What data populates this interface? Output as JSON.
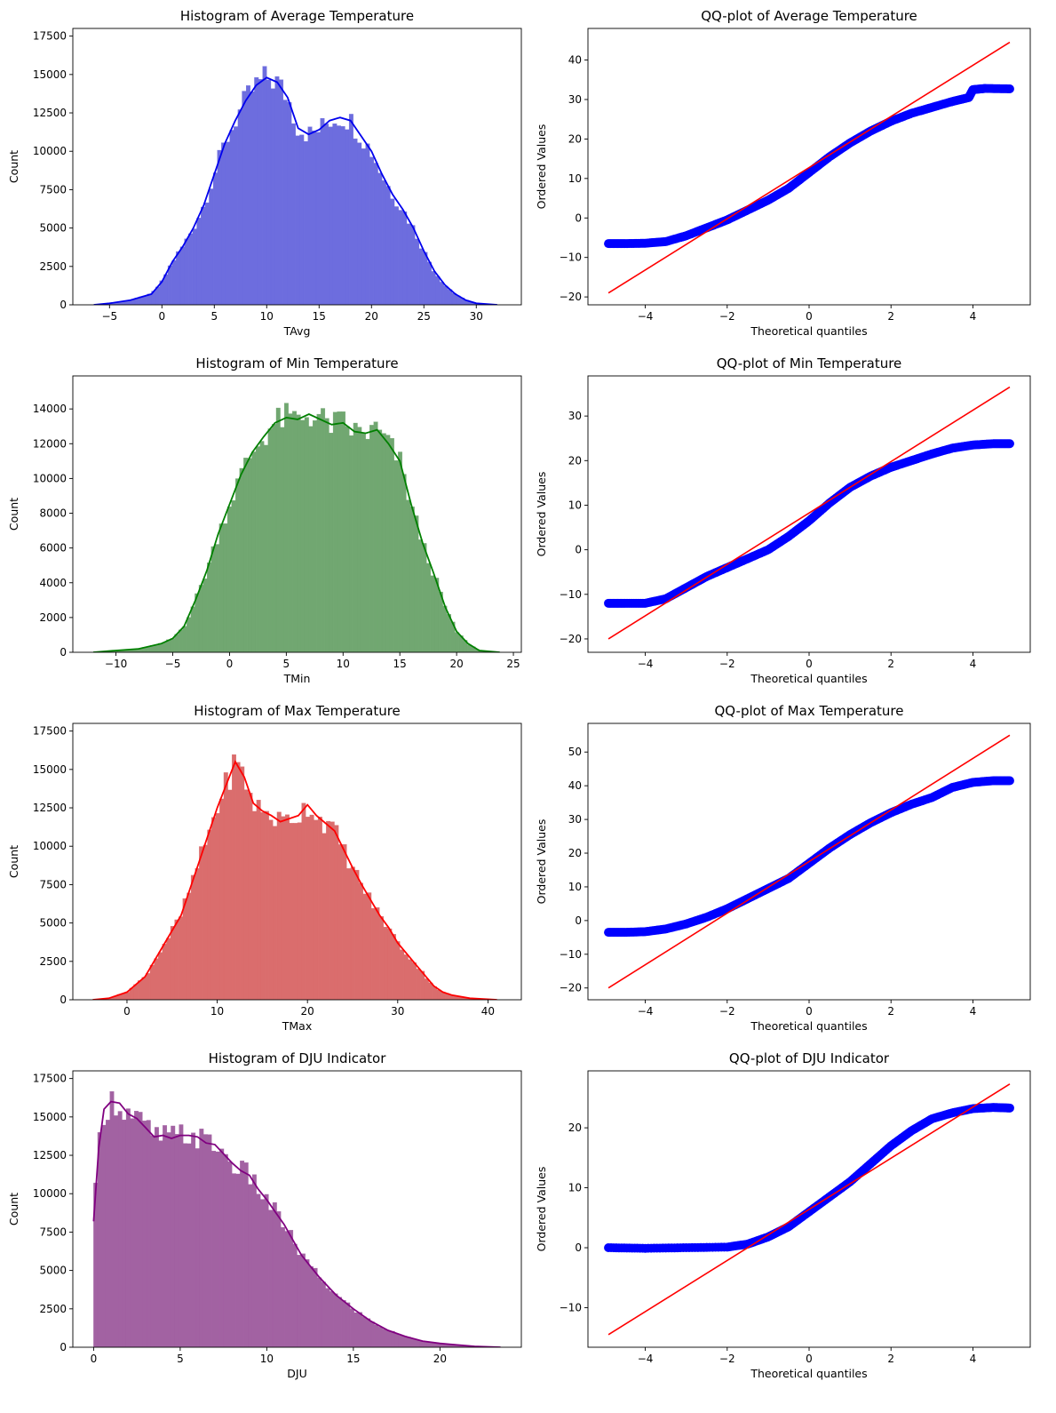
{
  "chart_data": [
    {
      "type": "histogram",
      "title": "Histogram of Average Temperature",
      "xlabel": "TAvg",
      "ylabel": "Count",
      "xlim": [
        -8.5,
        34.3
      ],
      "ylim": [
        0,
        18000
      ],
      "xticks": [
        -5,
        0,
        5,
        10,
        15,
        20,
        25,
        30
      ],
      "yticks": [
        0,
        2500,
        5000,
        7500,
        10000,
        12500,
        15000,
        17500
      ],
      "bins": [
        -6.5,
        32.8
      ],
      "bar_color": "#6666dd",
      "kde_color": "#0000ee",
      "kde": [
        [
          -6.5,
          0
        ],
        [
          -5,
          100
        ],
        [
          -3,
          300
        ],
        [
          -1,
          700
        ],
        [
          0,
          1500
        ],
        [
          1,
          2800
        ],
        [
          2,
          3800
        ],
        [
          3,
          5000
        ],
        [
          4,
          6500
        ],
        [
          5,
          8500
        ],
        [
          6,
          10500
        ],
        [
          7,
          12000
        ],
        [
          8,
          13300
        ],
        [
          9,
          14300
        ],
        [
          10,
          14800
        ],
        [
          11,
          14500
        ],
        [
          12,
          13500
        ],
        [
          13,
          11500
        ],
        [
          14,
          11100
        ],
        [
          15,
          11400
        ],
        [
          16,
          12000
        ],
        [
          17,
          12200
        ],
        [
          18,
          12000
        ],
        [
          19,
          11000
        ],
        [
          20,
          10000
        ],
        [
          21,
          8500
        ],
        [
          22,
          7200
        ],
        [
          23,
          6200
        ],
        [
          24,
          5000
        ],
        [
          25,
          3500
        ],
        [
          26,
          2200
        ],
        [
          27,
          1300
        ],
        [
          28,
          700
        ],
        [
          29,
          300
        ],
        [
          30,
          100
        ],
        [
          32,
          0
        ]
      ]
    },
    {
      "type": "scatter",
      "title": "QQ-plot of Average Temperature",
      "xlabel": "Theoretical quantiles",
      "ylabel": "Ordered Values",
      "xlim": [
        -5.4,
        5.4
      ],
      "ylim": [
        -22,
        48
      ],
      "xticks": [
        -4,
        -2,
        0,
        2,
        4
      ],
      "yticks": [
        -20,
        -10,
        0,
        10,
        20,
        30,
        40
      ],
      "points": [
        [
          -4.9,
          -6.5
        ],
        [
          -4.5,
          -6.5
        ],
        [
          -4,
          -6.4
        ],
        [
          -3.5,
          -6
        ],
        [
          -3,
          -4.5
        ],
        [
          -2.5,
          -2.5
        ],
        [
          -2,
          -0.5
        ],
        [
          -1.5,
          2
        ],
        [
          -1,
          4.5
        ],
        [
          -0.5,
          7.5
        ],
        [
          0,
          11.5
        ],
        [
          0.5,
          15.5
        ],
        [
          1,
          19
        ],
        [
          1.5,
          22
        ],
        [
          2,
          24.5
        ],
        [
          2.5,
          26.5
        ],
        [
          3,
          28
        ],
        [
          3.5,
          29.5
        ],
        [
          3.9,
          30.5
        ],
        [
          4,
          32.5
        ],
        [
          4.3,
          32.8
        ],
        [
          4.9,
          32.7
        ]
      ],
      "point_color": "#0000ff",
      "line": [
        [
          -4.9,
          -19
        ],
        [
          4.9,
          44.5
        ]
      ],
      "line_color": "#ff0000"
    },
    {
      "type": "histogram",
      "title": "Histogram of Min Temperature",
      "xlabel": "TMin",
      "ylabel": "Count",
      "xlim": [
        -13.8,
        25.7
      ],
      "ylim": [
        0,
        15900
      ],
      "xticks": [
        -10,
        -5,
        0,
        5,
        10,
        15,
        20,
        25
      ],
      "yticks": [
        0,
        2000,
        4000,
        6000,
        8000,
        10000,
        12000,
        14000
      ],
      "bins": [
        -12,
        23.8
      ],
      "bar_color": "#6aa36a",
      "kde_color": "#008000",
      "kde": [
        [
          -12,
          0
        ],
        [
          -10,
          100
        ],
        [
          -8,
          200
        ],
        [
          -6,
          500
        ],
        [
          -5,
          800
        ],
        [
          -4,
          1500
        ],
        [
          -3,
          3000
        ],
        [
          -2,
          4700
        ],
        [
          -1,
          6800
        ],
        [
          0,
          8500
        ],
        [
          1,
          10200
        ],
        [
          2,
          11500
        ],
        [
          3,
          12400
        ],
        [
          4,
          13200
        ],
        [
          5,
          13500
        ],
        [
          6,
          13400
        ],
        [
          7,
          13700
        ],
        [
          8,
          13400
        ],
        [
          9,
          13100
        ],
        [
          10,
          13200
        ],
        [
          11,
          12700
        ],
        [
          12,
          12600
        ],
        [
          13,
          12800
        ],
        [
          14,
          12000
        ],
        [
          15,
          11000
        ],
        [
          16,
          8500
        ],
        [
          17,
          6300
        ],
        [
          18,
          4500
        ],
        [
          19,
          2600
        ],
        [
          20,
          1200
        ],
        [
          21,
          500
        ],
        [
          22,
          100
        ],
        [
          23.8,
          0
        ]
      ]
    },
    {
      "type": "scatter",
      "title": "QQ-plot of Min Temperature",
      "xlabel": "Theoretical quantiles",
      "ylabel": "Ordered Values",
      "xlim": [
        -5.4,
        5.4
      ],
      "ylim": [
        -23,
        39
      ],
      "xticks": [
        -4,
        -2,
        0,
        2,
        4
      ],
      "yticks": [
        -20,
        -10,
        0,
        10,
        20,
        30
      ],
      "points": [
        [
          -4.9,
          -12
        ],
        [
          -4.5,
          -12
        ],
        [
          -4,
          -12
        ],
        [
          -3.5,
          -11
        ],
        [
          -3,
          -8.5
        ],
        [
          -2.5,
          -6
        ],
        [
          -2,
          -4
        ],
        [
          -1.5,
          -2
        ],
        [
          -1,
          0
        ],
        [
          -0.5,
          3
        ],
        [
          0,
          6.5
        ],
        [
          0.5,
          10.5
        ],
        [
          1,
          14
        ],
        [
          1.5,
          16.5
        ],
        [
          2,
          18.5
        ],
        [
          2.5,
          20
        ],
        [
          3,
          21.5
        ],
        [
          3.5,
          22.8
        ],
        [
          4,
          23.5
        ],
        [
          4.5,
          23.8
        ],
        [
          4.9,
          23.8
        ]
      ],
      "point_color": "#0000ff",
      "line": [
        [
          -4.9,
          -20
        ],
        [
          4.9,
          36.5
        ]
      ],
      "line_color": "#ff0000"
    },
    {
      "type": "histogram",
      "title": "Histogram of Max Temperature",
      "xlabel": "TMax",
      "ylabel": "Count",
      "xlim": [
        -6,
        43.7
      ],
      "ylim": [
        0,
        18000
      ],
      "xticks": [
        0,
        10,
        20,
        30,
        40
      ],
      "yticks": [
        0,
        2500,
        5000,
        7500,
        10000,
        12500,
        15000,
        17500
      ],
      "bins": [
        -3.8,
        41.6
      ],
      "bar_color": "#d96666",
      "kde_color": "#ff0000",
      "kde": [
        [
          -3.8,
          0
        ],
        [
          -2,
          100
        ],
        [
          0,
          500
        ],
        [
          2,
          1500
        ],
        [
          4,
          3500
        ],
        [
          6,
          5500
        ],
        [
          8,
          9000
        ],
        [
          10,
          12500
        ],
        [
          11,
          14000
        ],
        [
          12,
          15500
        ],
        [
          13,
          14500
        ],
        [
          14,
          12800
        ],
        [
          15,
          12300
        ],
        [
          16,
          12000
        ],
        [
          17,
          11600
        ],
        [
          18,
          11800
        ],
        [
          19,
          12000
        ],
        [
          20,
          12700
        ],
        [
          21,
          12000
        ],
        [
          22,
          11500
        ],
        [
          23,
          11000
        ],
        [
          24,
          9800
        ],
        [
          25,
          8600
        ],
        [
          26,
          7500
        ],
        [
          27,
          6500
        ],
        [
          28,
          5500
        ],
        [
          29,
          4700
        ],
        [
          30,
          3700
        ],
        [
          31,
          3000
        ],
        [
          32,
          2300
        ],
        [
          33,
          1600
        ],
        [
          34,
          900
        ],
        [
          35,
          500
        ],
        [
          36,
          300
        ],
        [
          38,
          100
        ],
        [
          41,
          0
        ]
      ]
    },
    {
      "type": "scatter",
      "title": "QQ-plot of Max Temperature",
      "xlabel": "Theoretical quantiles",
      "ylabel": "Ordered Values",
      "xlim": [
        -5.4,
        5.4
      ],
      "ylim": [
        -23.5,
        58.5
      ],
      "xticks": [
        -4,
        -2,
        0,
        2,
        4
      ],
      "yticks": [
        -20,
        -10,
        0,
        10,
        20,
        30,
        40,
        50
      ],
      "points": [
        [
          -4.9,
          -3.5
        ],
        [
          -4.5,
          -3.5
        ],
        [
          -4,
          -3.3
        ],
        [
          -3.5,
          -2.5
        ],
        [
          -3,
          -1
        ],
        [
          -2.5,
          1
        ],
        [
          -2,
          3.5
        ],
        [
          -1.5,
          6.5
        ],
        [
          -1,
          9.5
        ],
        [
          -0.5,
          12.5
        ],
        [
          0,
          17
        ],
        [
          0.5,
          21.5
        ],
        [
          1,
          25.5
        ],
        [
          1.5,
          29
        ],
        [
          2,
          32
        ],
        [
          2.5,
          34.5
        ],
        [
          3,
          36.5
        ],
        [
          3.5,
          39.5
        ],
        [
          4,
          41
        ],
        [
          4.5,
          41.5
        ],
        [
          4.9,
          41.5
        ]
      ],
      "point_color": "#0000ff",
      "line": [
        [
          -4.9,
          -20
        ],
        [
          4.9,
          55
        ]
      ],
      "line_color": "#ff0000"
    },
    {
      "type": "histogram",
      "title": "Histogram of DJU Indicator",
      "xlabel": "DJU",
      "ylabel": "Count",
      "xlim": [
        -1.2,
        24.7
      ],
      "ylim": [
        0,
        18000
      ],
      "xticks": [
        0,
        5,
        10,
        15,
        20
      ],
      "yticks": [
        0,
        2500,
        5000,
        7500,
        10000,
        12500,
        15000,
        17500
      ],
      "bins": [
        0,
        23.5
      ],
      "bar_color": "#9e5a9e",
      "kde_color": "#800080",
      "kde": [
        [
          0,
          8200
        ],
        [
          0.3,
          13000
        ],
        [
          0.6,
          15500
        ],
        [
          1,
          16000
        ],
        [
          1.5,
          15900
        ],
        [
          2,
          15200
        ],
        [
          2.5,
          14900
        ],
        [
          3,
          14300
        ],
        [
          3.5,
          13700
        ],
        [
          4,
          13800
        ],
        [
          4.5,
          13600
        ],
        [
          5,
          13800
        ],
        [
          5.5,
          13800
        ],
        [
          6,
          13700
        ],
        [
          6.5,
          13300
        ],
        [
          7,
          13200
        ],
        [
          7.5,
          12600
        ],
        [
          8,
          12000
        ],
        [
          8.5,
          11500
        ],
        [
          9,
          11200
        ],
        [
          9.5,
          10300
        ],
        [
          10,
          9600
        ],
        [
          10.5,
          8800
        ],
        [
          11,
          8000
        ],
        [
          11.5,
          7000
        ],
        [
          12,
          6000
        ],
        [
          12.5,
          5300
        ],
        [
          13,
          4600
        ],
        [
          13.5,
          4000
        ],
        [
          14,
          3400
        ],
        [
          15,
          2500
        ],
        [
          16,
          1700
        ],
        [
          17,
          1100
        ],
        [
          18,
          700
        ],
        [
          19,
          400
        ],
        [
          20,
          250
        ],
        [
          21,
          150
        ],
        [
          22,
          60
        ],
        [
          23.5,
          0
        ]
      ]
    },
    {
      "type": "scatter",
      "title": "QQ-plot of DJU Indicator",
      "xlabel": "Theoretical quantiles",
      "ylabel": "Ordered Values",
      "xlim": [
        -5.4,
        5.4
      ],
      "ylim": [
        -16.6,
        29.5
      ],
      "xticks": [
        -4,
        -2,
        0,
        2,
        4
      ],
      "yticks": [
        -10,
        0,
        10,
        20
      ],
      "points": [
        [
          -4.9,
          0
        ],
        [
          -4,
          -0.1
        ],
        [
          -3,
          0
        ],
        [
          -2,
          0.1
        ],
        [
          -1.5,
          0.6
        ],
        [
          -1,
          1.8
        ],
        [
          -0.5,
          3.5
        ],
        [
          0,
          6
        ],
        [
          0.5,
          8.5
        ],
        [
          1,
          11
        ],
        [
          1.5,
          14
        ],
        [
          2,
          17
        ],
        [
          2.5,
          19.5
        ],
        [
          3,
          21.5
        ],
        [
          3.5,
          22.5
        ],
        [
          4,
          23.2
        ],
        [
          4.5,
          23.4
        ],
        [
          4.9,
          23.3
        ]
      ],
      "point_color": "#0000ff",
      "line": [
        [
          -4.9,
          -14.5
        ],
        [
          4.9,
          27.3
        ]
      ],
      "line_color": "#ff0000"
    }
  ]
}
